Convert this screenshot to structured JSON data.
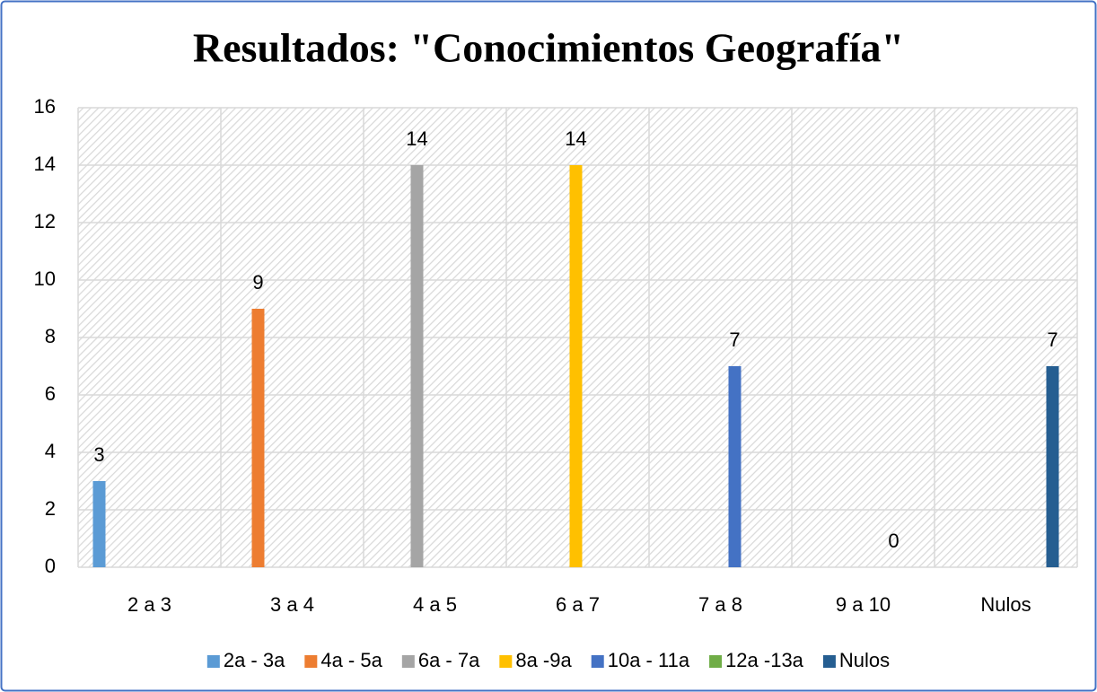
{
  "chart_data": {
    "type": "bar",
    "title": "Resultados: \"Conocimientos Geografía\"",
    "categories": [
      "2 a 3",
      "3 a 4",
      "4 a 5",
      "6 a 7",
      "7 a 8",
      "9 a 10",
      "Nulos"
    ],
    "series": [
      {
        "name": "2a - 3a",
        "color": "#5b9bd5",
        "values": [
          3,
          null,
          null,
          null,
          null,
          null,
          null
        ]
      },
      {
        "name": "4a - 5a",
        "color": "#ed7d31",
        "values": [
          null,
          9,
          null,
          null,
          null,
          null,
          null
        ]
      },
      {
        "name": "6a - 7a",
        "color": "#a5a5a5",
        "values": [
          null,
          null,
          14,
          null,
          null,
          null,
          null
        ]
      },
      {
        "name": "8a -9a",
        "color": "#ffc000",
        "values": [
          null,
          null,
          null,
          14,
          null,
          null,
          null
        ]
      },
      {
        "name": "10a - 11a",
        "color": "#4472c4",
        "values": [
          null,
          null,
          null,
          null,
          7,
          null,
          null
        ]
      },
      {
        "name": "12a -13a",
        "color": "#70ad47",
        "values": [
          null,
          null,
          null,
          null,
          null,
          0,
          null
        ]
      },
      {
        "name": "Nulos",
        "color": "#255e91",
        "values": [
          null,
          null,
          null,
          null,
          null,
          null,
          7
        ]
      }
    ],
    "ylim": [
      0,
      16
    ],
    "yticks": [
      0,
      2,
      4,
      6,
      8,
      10,
      12,
      14,
      16
    ],
    "grid": true,
    "legend": "bottom"
  }
}
